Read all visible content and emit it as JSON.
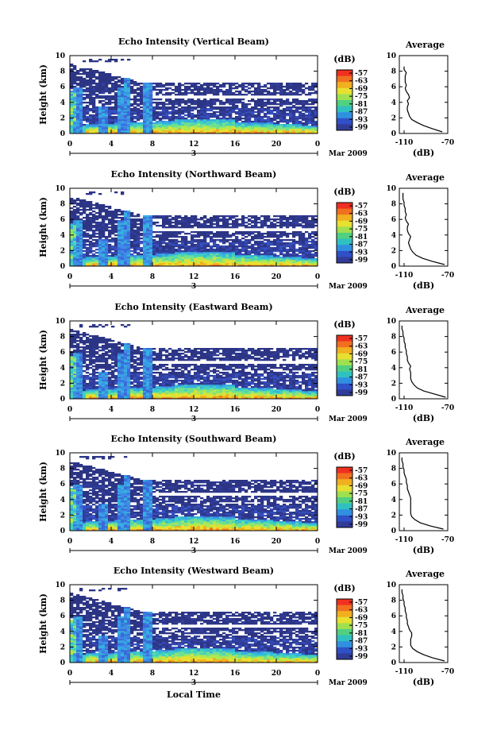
{
  "colorbar": {
    "unit": "(dB)",
    "labels": [
      "-57",
      "-63",
      "-69",
      "-75",
      "-81",
      "-87",
      "-93",
      "-99"
    ],
    "colors": [
      "#f03020",
      "#f07020",
      "#f0b020",
      "#e8e030",
      "#a0e050",
      "#50d080",
      "#30c0c0",
      "#3090e0",
      "#3050c8",
      "#303c98"
    ]
  },
  "shared": {
    "ylabel": "Height (km)",
    "x_ticks": [
      "0",
      "4",
      "8",
      "12",
      "16",
      "20",
      "0"
    ],
    "date_label": "3",
    "date_right": "Mar 2009",
    "xlabel": "Local Time",
    "avg_title": "Average",
    "avg_xticks": [
      "-110",
      "-70"
    ],
    "avg_xlabel": "(dB)",
    "y_ticks": [
      "0",
      "2",
      "4",
      "6",
      "8",
      "10"
    ]
  },
  "chart_data": [
    {
      "type": "heatmap",
      "title": "Echo Intensity (Vertical Beam)",
      "xlim": [
        0,
        24
      ],
      "ylim": [
        0,
        10
      ],
      "profile": {
        "height_km": [
          0.2,
          0.6,
          1,
          1.4,
          1.8,
          2.2,
          2.6,
          3,
          3.4,
          3.8,
          4.2,
          4.6,
          5,
          5.4,
          5.8,
          6.2,
          6.6,
          7,
          7.4,
          7.8,
          8.2,
          8.6
        ],
        "db": [
          -75,
          -84,
          -92,
          -98,
          -103,
          -105,
          -106,
          -107,
          -107,
          -106,
          -107,
          -105,
          -106,
          -108,
          -109,
          -108,
          -109,
          -109,
          -109,
          -108,
          -110,
          -110
        ]
      }
    },
    {
      "type": "heatmap",
      "title": "Echo Intensity (Northward Beam)",
      "xlim": [
        0,
        24
      ],
      "ylim": [
        0,
        10
      ],
      "profile": {
        "height_km": [
          0.2,
          0.6,
          1,
          1.4,
          1.8,
          2.2,
          2.6,
          3,
          3.4,
          3.8,
          4.2,
          4.6,
          5,
          5.4,
          5.8,
          6.2,
          6.6,
          7,
          7.4,
          7.8,
          8.2,
          8.6,
          9,
          9.4
        ],
        "db": [
          -73,
          -84,
          -93,
          -99,
          -102,
          -104,
          -105,
          -106,
          -105,
          -104,
          -106,
          -107,
          -107,
          -106,
          -108,
          -109,
          -108,
          -109,
          -109,
          -110,
          -110,
          -111,
          -111,
          -111
        ]
      }
    },
    {
      "type": "heatmap",
      "title": "Echo Intensity (Eastward Beam)",
      "xlim": [
        0,
        24
      ],
      "ylim": [
        0,
        10
      ],
      "profile": {
        "height_km": [
          0.2,
          0.6,
          1,
          1.4,
          1.8,
          2.2,
          2.6,
          3,
          3.4,
          3.8,
          4.2,
          4.6,
          5,
          5.4,
          5.8,
          6.2,
          6.6,
          7,
          7.4,
          7.8,
          8.2,
          8.6,
          9,
          9.4
        ],
        "db": [
          -72,
          -82,
          -92,
          -98,
          -101,
          -103,
          -104,
          -104,
          -104,
          -105,
          -104,
          -106,
          -107,
          -107,
          -108,
          -108,
          -109,
          -109,
          -110,
          -110,
          -111,
          -111,
          -112,
          -112
        ]
      }
    },
    {
      "type": "heatmap",
      "title": "Echo Intensity (Southward Beam)",
      "xlim": [
        0,
        24
      ],
      "ylim": [
        0,
        10
      ],
      "profile": {
        "height_km": [
          0.2,
          0.6,
          1,
          1.4,
          1.8,
          2.2,
          2.6,
          3,
          3.4,
          3.8,
          4.2,
          4.6,
          5,
          5.4,
          5.8,
          6.2,
          6.6,
          7,
          7.4,
          7.8,
          8.2,
          8.6,
          9,
          9.4
        ],
        "db": [
          -74,
          -86,
          -95,
          -100,
          -103,
          -104,
          -104,
          -104,
          -104,
          -104,
          -104,
          -105,
          -106,
          -107,
          -107,
          -108,
          -108,
          -109,
          -110,
          -110,
          -111,
          -111,
          -112,
          -112
        ]
      }
    },
    {
      "type": "heatmap",
      "title": "Echo Intensity (Westward Beam)",
      "xlim": [
        0,
        24
      ],
      "ylim": [
        0,
        10
      ],
      "profile": {
        "height_km": [
          0.2,
          0.6,
          1,
          1.4,
          1.8,
          2.2,
          2.6,
          3,
          3.4,
          3.8,
          4.2,
          4.6,
          5,
          5.4,
          5.8,
          6.2,
          6.6,
          7,
          7.4,
          7.8,
          8.2,
          8.6,
          9,
          9.4
        ],
        "db": [
          -73,
          -84,
          -92,
          -98,
          -102,
          -104,
          -104,
          -104,
          -103,
          -103,
          -105,
          -106,
          -107,
          -107,
          -108,
          -108,
          -109,
          -109,
          -110,
          -110,
          -111,
          -111,
          -112,
          -112
        ]
      }
    }
  ]
}
